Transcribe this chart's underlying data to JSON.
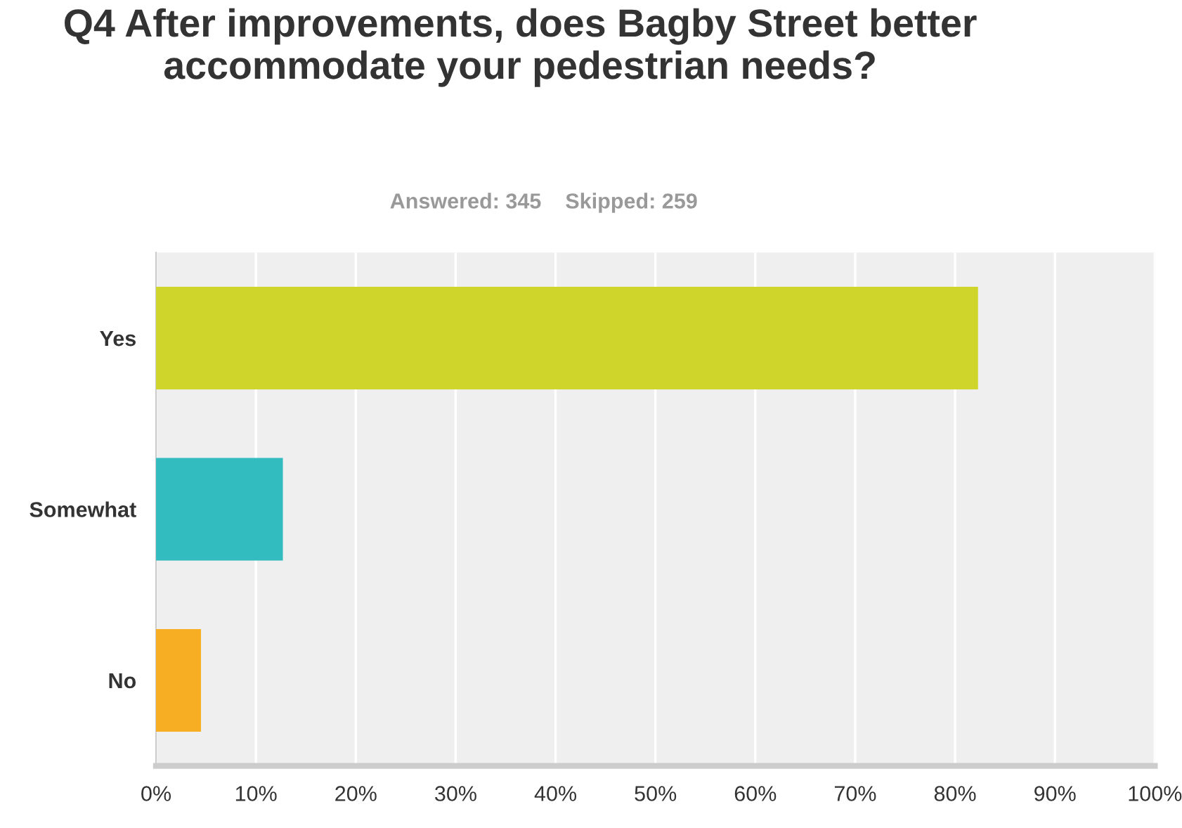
{
  "chart_data": {
    "type": "bar",
    "orientation": "horizontal",
    "title": "Q4 After improvements, does Bagby Street better accommodate your pedestrian needs?",
    "subtitle": "Answered: 345    Skipped: 259",
    "categories": [
      "Yes",
      "Somewhat",
      "No"
    ],
    "values": [
      82.3,
      12.7,
      4.5
    ],
    "colors": [
      "#cfd52a",
      "#32bcbf",
      "#f7ae22"
    ],
    "xlim": [
      0,
      100
    ],
    "xticks": [
      {
        "value": 0,
        "label": "0%"
      },
      {
        "value": 10,
        "label": "10%"
      },
      {
        "value": 20,
        "label": "20%"
      },
      {
        "value": 30,
        "label": "30%"
      },
      {
        "value": 40,
        "label": "40%"
      },
      {
        "value": 50,
        "label": "50%"
      },
      {
        "value": 60,
        "label": "60%"
      },
      {
        "value": 70,
        "label": "70%"
      },
      {
        "value": 80,
        "label": "80%"
      },
      {
        "value": 90,
        "label": "90%"
      },
      {
        "value": 100,
        "label": "100%"
      }
    ],
    "grid": "x"
  }
}
